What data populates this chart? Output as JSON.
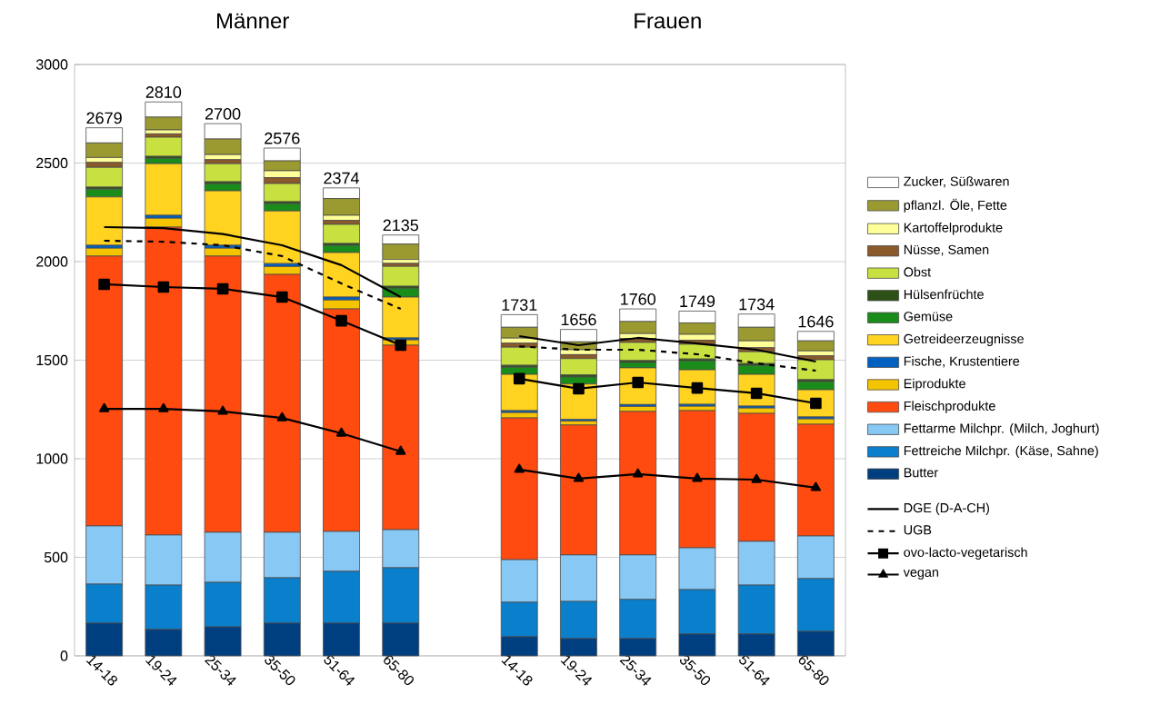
{
  "chart_data": {
    "type": "bar",
    "stacked": true,
    "annotations": [
      "Männer",
      "Frauen"
    ],
    "categories": [
      "14-18",
      "19-24",
      "25-34",
      "35-50",
      "51-64",
      "65-80",
      null,
      "14-18",
      "19-24",
      "25-34",
      "35-50",
      "51-64",
      "65-80"
    ],
    "series": [
      {
        "name": "Butter",
        "color": "#003f7f",
        "values": [
          166,
          134,
          147,
          166,
          166,
          166,
          null,
          97,
          88,
          88,
          111,
          111,
          124
        ]
      },
      {
        "name": "Fettreiche Milchpr. (Käse, Sahne)",
        "color": "#0a7fcc",
        "values": [
          198,
          225,
          226,
          230,
          263,
          281,
          null,
          175,
          188,
          198,
          225,
          248,
          268
        ]
      },
      {
        "name": "Fettarme Milchpr. (Milch, Joghurt)",
        "color": "#87c8f5",
        "values": [
          295,
          254,
          254,
          231,
          202,
          193,
          null,
          216,
          236,
          226,
          212,
          222,
          216
        ]
      },
      {
        "name": "Fleischprodukte",
        "color": "#ff4a10",
        "values": [
          1369,
          1562,
          1401,
          1308,
          1129,
          936,
          null,
          719,
          659,
          728,
          696,
          649,
          567
        ]
      },
      {
        "name": "Eiprodukte",
        "color": "#f5c400",
        "values": [
          40,
          45,
          40,
          40,
          45,
          27,
          null,
          27,
          20,
          25,
          22,
          27,
          27
        ]
      },
      {
        "name": "Fische, Krustentiere",
        "color": "#0060c0",
        "values": [
          15,
          15,
          15,
          15,
          15,
          10,
          null,
          10,
          8,
          10,
          10,
          10,
          10
        ]
      },
      {
        "name": "Getreideerzeugnisse",
        "color": "#ffd320",
        "values": [
          245,
          262,
          276,
          267,
          226,
          207,
          null,
          184,
          180,
          186,
          175,
          161,
          138
        ]
      },
      {
        "name": "Gemüse",
        "color": "#1a8c1a",
        "values": [
          40,
          27,
          36,
          37,
          36,
          45,
          null,
          36,
          36,
          27,
          45,
          45,
          41
        ]
      },
      {
        "name": "Hülsenfrüchte",
        "color": "#2d5016",
        "values": [
          10,
          10,
          10,
          10,
          10,
          10,
          null,
          10,
          10,
          10,
          10,
          10,
          10
        ]
      },
      {
        "name": "Obst",
        "color": "#c8e040",
        "values": [
          100,
          97,
          92,
          92,
          97,
          101,
          null,
          92,
          83,
          92,
          75,
          60,
          101
        ]
      },
      {
        "name": "Nüsse, Samen",
        "color": "#8b5a2b",
        "values": [
          25,
          17,
          20,
          30,
          20,
          15,
          null,
          20,
          20,
          20,
          20,
          20,
          20
        ]
      },
      {
        "name": "Kartoffelprodukte",
        "color": "#ffff99",
        "values": [
          25,
          20,
          26,
          35,
          26,
          20,
          null,
          26,
          25,
          25,
          30,
          35,
          25
        ]
      },
      {
        "name": "pflanzl. Öle, Fette",
        "color": "#9a9a30",
        "values": [
          74,
          65,
          79,
          50,
          85,
          78,
          null,
          55,
          40,
          61,
          58,
          69,
          51
        ]
      },
      {
        "name": "Zucker, Süßwaren",
        "color": "#ffffff",
        "values": [
          77,
          77,
          78,
          65,
          54,
          46,
          null,
          64,
          63,
          64,
          60,
          67,
          48
        ]
      },
      {
        "name": "DGE (D-A-CH)",
        "type": "line",
        "color": "#000000",
        "line_style": "solid",
        "marker": "none",
        "values": [
          2175,
          2170,
          2140,
          2083,
          1982,
          1820,
          null,
          1622,
          1576,
          1613,
          1585,
          1553,
          1493
        ]
      },
      {
        "name": "UGB",
        "type": "line",
        "color": "#000000",
        "line_style": "dashed",
        "marker": "none",
        "values": [
          2106,
          2101,
          2083,
          2028,
          1889,
          1760,
          null,
          1570,
          1553,
          1553,
          1530,
          1484,
          1447
        ]
      },
      {
        "name": "ovo-lacto-vegetarisch",
        "type": "line",
        "color": "#000000",
        "line_style": "solid",
        "marker": "square",
        "values": [
          1885,
          1871,
          1862,
          1820,
          1700,
          1576,
          null,
          1406,
          1355,
          1387,
          1359,
          1332,
          1281
        ]
      },
      {
        "name": "vegan",
        "type": "line",
        "color": "#000000",
        "line_style": "solid",
        "marker": "triangle",
        "values": [
          1253,
          1253,
          1240,
          1207,
          1129,
          1037,
          null,
          945,
          899,
          922,
          899,
          894,
          853
        ]
      }
    ],
    "totals": [
      "2679",
      "2810",
      "2700",
      "2576",
      "2374",
      "2135",
      null,
      "1731",
      "1656",
      "1760",
      "1749",
      "1734",
      "1646"
    ],
    "ylim": [
      0,
      3000
    ],
    "yticks": [
      0,
      500,
      1000,
      1500,
      2000,
      2500,
      3000
    ],
    "grid": "y",
    "legend": "right"
  }
}
